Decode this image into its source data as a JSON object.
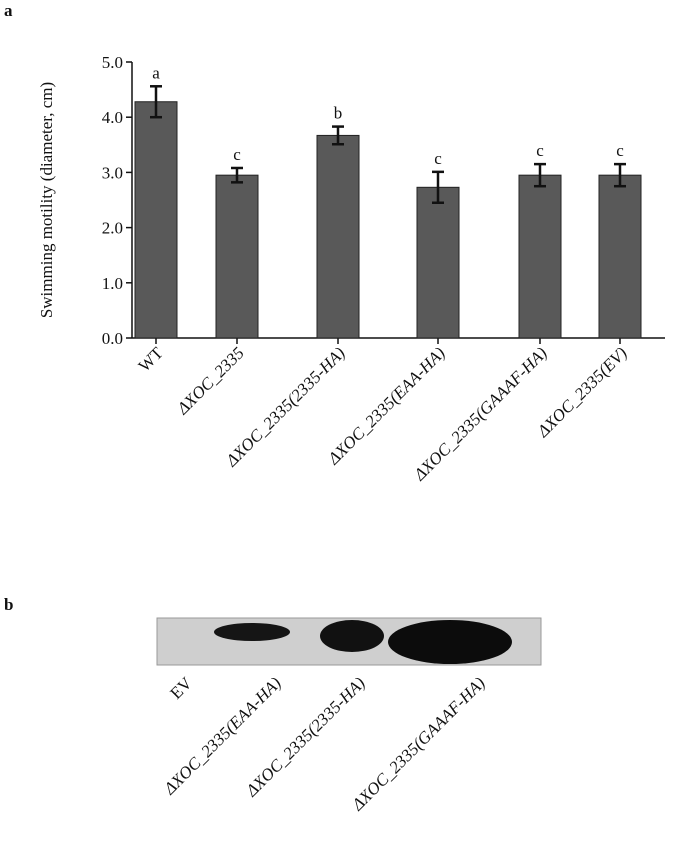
{
  "chart_data": {
    "type": "bar",
    "panel_label": "a",
    "ylabel": "Swimming motility (diameter, cm)",
    "categories": [
      "WT",
      "ΔXOC_2335",
      "ΔXOC_2335(2335-HA)",
      "ΔXOC_2335(EAA-HA)",
      "ΔXOC_2335(GAAAF-HA)",
      "ΔXOC_2335(EV)"
    ],
    "values": [
      4.28,
      2.95,
      3.67,
      2.73,
      2.95,
      2.95
    ],
    "errors": [
      0.28,
      0.13,
      0.16,
      0.28,
      0.2,
      0.2
    ],
    "letters": [
      "a",
      "c",
      "b",
      "c",
      "c",
      "c"
    ],
    "color": "#595959",
    "ylim": [
      0,
      5
    ],
    "yticks": [
      {
        "value": 0,
        "label": "0.0"
      },
      {
        "value": 1,
        "label": "1.0"
      },
      {
        "value": 2,
        "label": "2.0"
      },
      {
        "value": 3,
        "label": "3.0"
      },
      {
        "value": 4,
        "label": "4.0"
      },
      {
        "value": 5,
        "label": "5.0"
      }
    ]
  },
  "blot": {
    "panel_label": "b",
    "lanes": [
      "EV",
      "ΔXOC_2335(EAA-HA)",
      "ΔXOC_2335(2335-HA)",
      "ΔXOC_2335(GAAAF-HA)"
    ]
  }
}
